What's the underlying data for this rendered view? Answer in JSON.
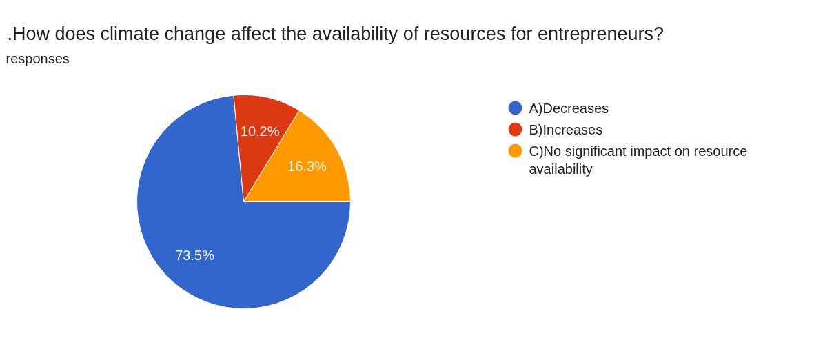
{
  "chart_data": {
    "type": "pie",
    "title": ".How does climate change affect the availability of resources for entrepreneurs?",
    "subtitle": "responses",
    "categories": [
      "A)Decreases",
      "B)Increases",
      "C)No significant impact on resource availability"
    ],
    "values": [
      73.5,
      10.2,
      16.3
    ],
    "colors": [
      "#3366cc",
      "#dc3912",
      "#ff9900"
    ],
    "value_labels": [
      "73.5%",
      "10.2%",
      "16.3%"
    ],
    "legend": "right"
  }
}
